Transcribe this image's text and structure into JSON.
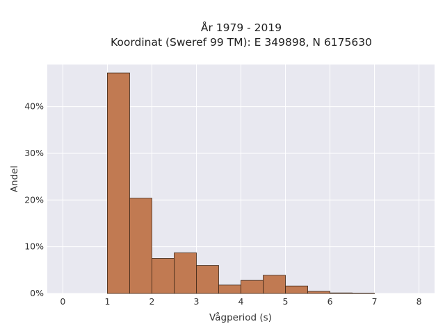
{
  "chart_data": {
    "type": "bar",
    "title_lines": [
      "År 1979 - 2019",
      "Koordinat (Sweref 99 TM): E 349898, N 6175630"
    ],
    "xlabel": "Vågperiod (s)",
    "ylabel": "Andel",
    "xlim": [
      -0.35,
      8.35
    ],
    "ylim": [
      0,
      49
    ],
    "x_ticks": [
      0,
      1,
      2,
      3,
      4,
      5,
      6,
      7,
      8
    ],
    "x_tick_labels": [
      "0",
      "1",
      "2",
      "3",
      "4",
      "5",
      "6",
      "7",
      "8"
    ],
    "y_ticks": [
      0,
      10,
      20,
      30,
      40
    ],
    "y_tick_labels": [
      "0%",
      "10%",
      "20%",
      "30%",
      "40%"
    ],
    "bin_width": 0.5,
    "bins": [
      {
        "start": 1.0,
        "value": 47.2
      },
      {
        "start": 1.5,
        "value": 20.4
      },
      {
        "start": 2.0,
        "value": 7.5
      },
      {
        "start": 2.5,
        "value": 8.7
      },
      {
        "start": 3.0,
        "value": 6.0
      },
      {
        "start": 3.5,
        "value": 1.8
      },
      {
        "start": 4.0,
        "value": 2.8
      },
      {
        "start": 4.5,
        "value": 3.9
      },
      {
        "start": 5.0,
        "value": 1.6
      },
      {
        "start": 5.5,
        "value": 0.45
      },
      {
        "start": 6.0,
        "value": 0.12
      },
      {
        "start": 6.5,
        "value": 0.08
      }
    ],
    "grid": true,
    "colors": {
      "bar_fill": "#c17a52",
      "bar_edge": "#3d2616",
      "plot_bg": "#e8e8f0",
      "grid": "#ffffff"
    }
  }
}
